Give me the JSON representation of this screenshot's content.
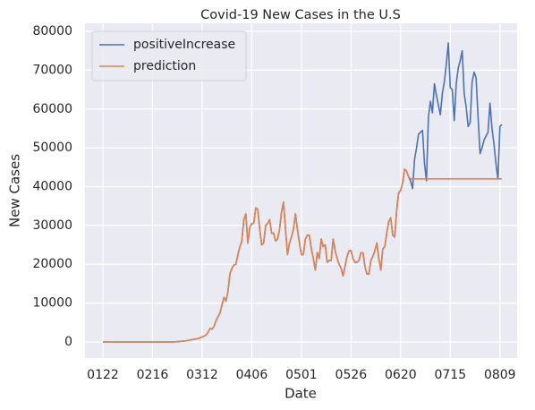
{
  "chart_data": {
    "type": "line",
    "title": "Covid-19 New Cases in the U.S",
    "x_label": "Date",
    "y_label": "New Cases",
    "categories": [
      "0122",
      null,
      null,
      null,
      null,
      null,
      null,
      null,
      null,
      null,
      null,
      null,
      null,
      null,
      null,
      null,
      null,
      null,
      null,
      null,
      null,
      null,
      null,
      null,
      null,
      "0216",
      null,
      null,
      null,
      null,
      null,
      null,
      null,
      null,
      null,
      null,
      null,
      null,
      null,
      null,
      null,
      null,
      null,
      null,
      null,
      null,
      null,
      null,
      null,
      null,
      "0312",
      null,
      null,
      null,
      null,
      null,
      null,
      null,
      null,
      null,
      null,
      null,
      null,
      null,
      null,
      null,
      null,
      null,
      null,
      null,
      null,
      null,
      null,
      null,
      null,
      "0406",
      null,
      null,
      null,
      null,
      null,
      null,
      null,
      null,
      null,
      null,
      null,
      null,
      null,
      null,
      null,
      null,
      null,
      null,
      null,
      null,
      null,
      null,
      null,
      null,
      "0501",
      null,
      null,
      null,
      null,
      null,
      null,
      null,
      null,
      null,
      null,
      null,
      null,
      null,
      null,
      null,
      null,
      null,
      null,
      null,
      null,
      null,
      null,
      null,
      null,
      "0526",
      null,
      null,
      null,
      null,
      null,
      null,
      null,
      null,
      null,
      null,
      null,
      null,
      null,
      null,
      null,
      null,
      null,
      null,
      null,
      null,
      null,
      null,
      null,
      null,
      "0620",
      null,
      null,
      null,
      null,
      null,
      null,
      null,
      null,
      null,
      null,
      null,
      null,
      null,
      null,
      null,
      null,
      null,
      null,
      null,
      null,
      null,
      null,
      null,
      null,
      "0715",
      null,
      null,
      null,
      null,
      null,
      null,
      null,
      null,
      null,
      null,
      null,
      null,
      null,
      null,
      null,
      null,
      null,
      null,
      null,
      null,
      null,
      null,
      null,
      null,
      "0809",
      null
    ],
    "series": [
      {
        "name": "positiveIncrease",
        "color": "#4c72b0",
        "values": [
          0,
          0,
          0,
          0,
          0,
          0,
          0,
          0,
          0,
          0,
          0,
          0,
          0,
          0,
          0,
          0,
          0,
          0,
          0,
          0,
          0,
          0,
          0,
          0,
          0,
          0,
          0,
          0,
          0,
          0,
          0,
          0,
          0,
          0,
          0,
          0,
          50,
          70,
          100,
          150,
          200,
          250,
          300,
          400,
          500,
          600,
          700,
          800,
          900,
          1100,
          1300,
          1500,
          1800,
          2500,
          3500,
          3300,
          4000,
          5500,
          6500,
          7500,
          9500,
          11500,
          10500,
          13000,
          17500,
          19000,
          19800,
          20000,
          22500,
          24500,
          26000,
          31500,
          33000,
          25500,
          29500,
          30500,
          30500,
          34500,
          34200,
          29000,
          25000,
          25500,
          30000,
          30500,
          31500,
          28000,
          28000,
          26000,
          26500,
          29000,
          33500,
          36000,
          29000,
          22500,
          25500,
          27000,
          29000,
          33000,
          29000,
          25500,
          22500,
          22500,
          26500,
          27500,
          27500,
          24000,
          21500,
          18500,
          23000,
          21500,
          26500,
          24500,
          25000,
          20500,
          21000,
          21000,
          26500,
          23500,
          21500,
          20000,
          19000,
          17000,
          19500,
          22000,
          23500,
          23500,
          21500,
          20500,
          20500,
          21000,
          23000,
          23000,
          19500,
          17500,
          17500,
          21000,
          22000,
          23500,
          25500,
          21500,
          18500,
          24000,
          24500,
          28000,
          31000,
          32000,
          27500,
          27000,
          34000,
          38500,
          39000,
          41000,
          44500,
          44000,
          42500,
          41500,
          39500,
          47000,
          50000,
          53500,
          54000,
          54500,
          46000,
          41500,
          58000,
          62000,
          59000,
          66500,
          63500,
          61000,
          58500,
          64000,
          67000,
          71500,
          77000,
          65500,
          65000,
          57000,
          66500,
          70500,
          72500,
          75000,
          64000,
          60500,
          55500,
          56500,
          67000,
          69500,
          68000,
          58000,
          48500,
          50000,
          52000,
          53000,
          54000,
          61500,
          55000,
          51000,
          46000,
          42000,
          55500,
          56000
        ]
      },
      {
        "name": "prediction",
        "color": "#dd8452",
        "values": [
          0,
          0,
          0,
          0,
          0,
          0,
          0,
          0,
          0,
          0,
          0,
          0,
          0,
          0,
          0,
          0,
          0,
          0,
          0,
          0,
          0,
          0,
          0,
          0,
          0,
          0,
          0,
          0,
          0,
          0,
          0,
          0,
          0,
          0,
          0,
          0,
          50,
          70,
          100,
          150,
          200,
          250,
          300,
          400,
          500,
          600,
          700,
          800,
          900,
          1100,
          1300,
          1500,
          1800,
          2500,
          3500,
          3300,
          4000,
          5500,
          6500,
          7500,
          9500,
          11500,
          10500,
          13000,
          17500,
          19000,
          19800,
          20000,
          22500,
          24500,
          26000,
          31500,
          33000,
          25500,
          29500,
          30500,
          30500,
          34500,
          34200,
          29000,
          25000,
          25500,
          30000,
          30500,
          31500,
          28000,
          28000,
          26000,
          26500,
          29000,
          33500,
          36000,
          29000,
          22500,
          25500,
          27000,
          29000,
          33000,
          29000,
          25500,
          22500,
          22500,
          26500,
          27500,
          27500,
          24000,
          21500,
          18500,
          23000,
          21500,
          26500,
          24500,
          25000,
          20500,
          21000,
          21000,
          26500,
          23500,
          21500,
          20000,
          19000,
          17000,
          19500,
          22000,
          23500,
          23500,
          21500,
          20500,
          20500,
          21000,
          23000,
          23000,
          19500,
          17500,
          17500,
          21000,
          22000,
          23500,
          25500,
          21500,
          18500,
          24000,
          24500,
          28000,
          31000,
          32000,
          27500,
          27000,
          34000,
          38500,
          39000,
          41000,
          44500,
          44000,
          42500,
          42000,
          42000,
          42000,
          42000,
          42000,
          42000,
          42000,
          42000,
          42000,
          42000,
          42000,
          42000,
          42000,
          42000,
          42000,
          42000,
          42000,
          42000,
          42000,
          42000,
          42000,
          42000,
          42000,
          42000,
          42000,
          42000,
          42000,
          42000,
          42000,
          42000,
          42000,
          42000,
          42000,
          42000,
          42000,
          42000,
          42000,
          42000,
          42000,
          42000,
          42000,
          42000,
          42000,
          42000,
          42000,
          42000,
          42000
        ]
      }
    ],
    "ylim": [
      -4150,
      82075
    ],
    "yticks": [
      0,
      10000,
      20000,
      30000,
      40000,
      50000,
      60000,
      70000,
      80000
    ],
    "grid": true,
    "legend": "upper left"
  }
}
